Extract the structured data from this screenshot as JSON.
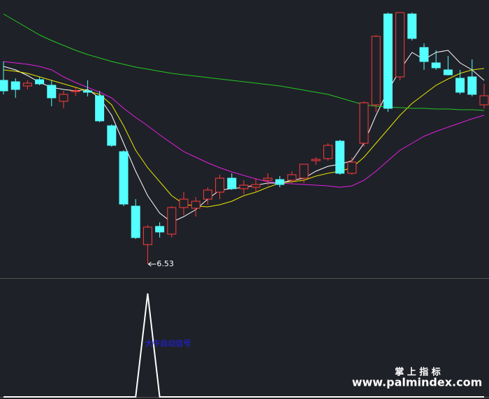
{
  "chart_data": [
    {
      "type": "candlestick",
      "up_color": "#ff3a3a",
      "down_color": "#54ffff",
      "ylim": [
        6.33,
        10.31
      ],
      "open": [
        9.16,
        9.14,
        9.08,
        9.17,
        9.09,
        8.86,
        9.0,
        9.01,
        8.94,
        8.51,
        8.14,
        7.36,
        6.81,
        7.07,
        6.96,
        7.34,
        7.33,
        7.46,
        7.56,
        7.76,
        7.61,
        7.63,
        7.73,
        7.74,
        7.73,
        7.76,
        8.01,
        8.04,
        8.29,
        7.83,
        8.26,
        8.81,
        10.11,
        9.21,
        10.11,
        9.63,
        9.41,
        9.31,
        9.19,
        9.21,
        8.81
      ],
      "high": [
        9.43,
        9.19,
        9.16,
        9.21,
        9.16,
        9.01,
        9.06,
        9.16,
        9.01,
        8.53,
        8.16,
        7.46,
        7.09,
        7.13,
        7.36,
        7.56,
        7.49,
        7.63,
        7.81,
        7.83,
        7.73,
        7.76,
        7.83,
        7.79,
        7.86,
        7.96,
        8.06,
        8.26,
        8.31,
        8.06,
        8.86,
        9.81,
        10.13,
        10.13,
        10.13,
        9.69,
        9.59,
        9.51,
        9.31,
        9.46,
        9.11
      ],
      "low": [
        8.96,
        8.91,
        9.03,
        9.09,
        8.79,
        8.76,
        8.94,
        8.93,
        8.56,
        8.21,
        7.36,
        6.89,
        6.53,
        6.91,
        6.91,
        7.23,
        7.21,
        7.38,
        7.46,
        7.59,
        7.53,
        7.56,
        7.66,
        7.63,
        7.69,
        7.69,
        7.95,
        8.01,
        7.81,
        7.81,
        8.21,
        8.71,
        8.71,
        9.16,
        9.73,
        9.31,
        9.31,
        9.23,
        8.96,
        8.93,
        8.76
      ],
      "close": [
        9.01,
        9.03,
        9.12,
        9.11,
        8.91,
        8.96,
        9.01,
        8.99,
        8.58,
        8.23,
        7.39,
        6.91,
        7.06,
        6.99,
        7.34,
        7.46,
        7.43,
        7.59,
        7.76,
        7.61,
        7.66,
        7.67,
        7.76,
        7.67,
        7.81,
        7.96,
        8.03,
        8.23,
        7.83,
        7.99,
        8.84,
        9.79,
        8.76,
        10.13,
        9.76,
        9.43,
        9.34,
        9.24,
        8.99,
        8.96,
        8.94
      ],
      "lines": [
        {
          "color": "#ffffff",
          "values": [
            9.36,
            9.31,
            9.23,
            9.13,
            9.06,
            9.03,
            9.01,
            9.03,
            8.91,
            8.66,
            8.26,
            7.86,
            7.51,
            7.26,
            7.13,
            7.21,
            7.31,
            7.46,
            7.59,
            7.61,
            7.63,
            7.66,
            7.69,
            7.69,
            7.73,
            7.76,
            7.86,
            7.93,
            7.96,
            8.01,
            8.26,
            8.66,
            9.01,
            9.31,
            9.56,
            9.46,
            9.56,
            9.59,
            9.41,
            9.31,
            9.16
          ]
        },
        {
          "color": "#e6e600",
          "values": [
            9.31,
            9.29,
            9.26,
            9.21,
            9.16,
            9.11,
            9.06,
            9.01,
            8.96,
            8.81,
            8.51,
            8.16,
            7.91,
            7.71,
            7.51,
            7.39,
            7.36,
            7.35,
            7.38,
            7.43,
            7.51,
            7.56,
            7.63,
            7.69,
            7.71,
            7.73,
            7.79,
            7.83,
            7.86,
            7.91,
            8.06,
            8.26,
            8.46,
            8.66,
            8.83,
            8.96,
            9.09,
            9.18,
            9.26,
            9.31,
            9.33
          ]
        },
        {
          "color": "#e020e0",
          "values": [
            9.43,
            9.41,
            9.39,
            9.36,
            9.31,
            9.21,
            9.13,
            9.06,
            8.99,
            8.91,
            8.76,
            8.63,
            8.51,
            8.38,
            8.26,
            8.14,
            8.06,
            7.98,
            7.91,
            7.85,
            7.8,
            7.75,
            7.71,
            7.69,
            7.68,
            7.67,
            7.66,
            7.65,
            7.63,
            7.65,
            7.73,
            7.86,
            8.01,
            8.16,
            8.26,
            8.36,
            8.43,
            8.49,
            8.55,
            8.61,
            8.66
          ]
        },
        {
          "color": "#22c822",
          "values": [
            10.11,
            10.01,
            9.91,
            9.81,
            9.73,
            9.66,
            9.59,
            9.53,
            9.48,
            9.43,
            9.39,
            9.35,
            9.32,
            9.29,
            9.26,
            9.24,
            9.22,
            9.2,
            9.18,
            9.16,
            9.14,
            9.12,
            9.1,
            9.08,
            9.05,
            9.02,
            8.99,
            8.96,
            8.91,
            8.86,
            8.81,
            8.79,
            8.78,
            8.77,
            8.76,
            8.76,
            8.75,
            8.75,
            8.74,
            8.74,
            8.73
          ]
        }
      ],
      "low_annotation": {
        "index": 12,
        "value": 6.53
      }
    },
    {
      "type": "line",
      "color": "#ffffff",
      "ylim": [
        0,
        1
      ],
      "values": [
        0,
        0,
        0,
        0,
        0,
        0,
        0,
        0,
        0,
        0,
        0,
        0,
        1,
        0,
        0,
        0,
        0,
        0,
        0,
        0,
        0,
        0,
        0,
        0,
        0,
        0,
        0,
        0,
        0,
        0,
        0,
        0,
        0,
        0,
        0,
        0,
        0,
        0,
        0,
        0,
        0
      ],
      "annotation": {
        "index": 12,
        "text": "大牛启动信号",
        "color": "#2020ff"
      }
    }
  ],
  "watermark": {
    "title": "掌 上 指 标",
    "url": "www.palmindex.com"
  }
}
